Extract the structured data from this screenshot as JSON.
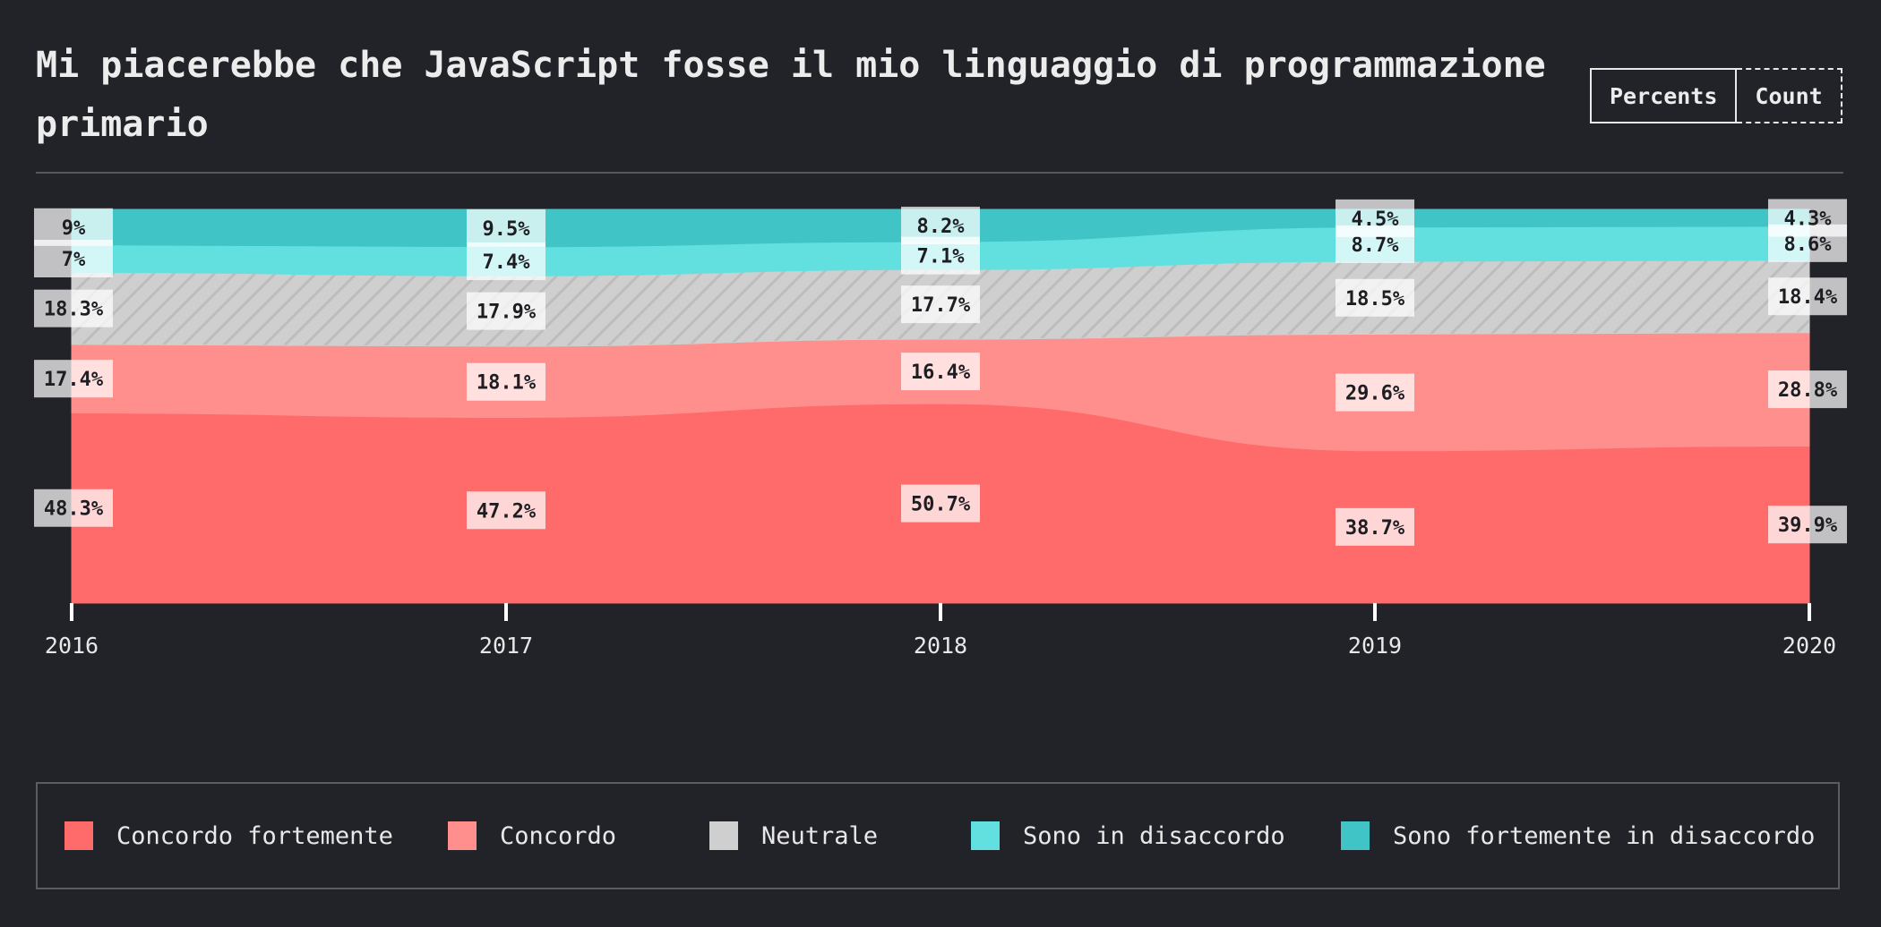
{
  "header": {
    "title": "Mi piacerebbe che JavaScript fosse il mio linguaggio di programmazione primario",
    "toggle": [
      "Percents",
      "Count"
    ]
  },
  "chart_data": {
    "type": "area",
    "stacked": true,
    "unit": "%",
    "x": [
      "2016",
      "2017",
      "2018",
      "2019",
      "2020"
    ],
    "series": [
      {
        "name": "Concordo fortemente",
        "color": "#ff6b6b",
        "values": [
          48.3,
          47.2,
          50.7,
          38.7,
          39.9
        ]
      },
      {
        "name": "Concordo",
        "color": "#ff8f8c",
        "values": [
          17.4,
          18.1,
          16.4,
          29.6,
          28.8
        ]
      },
      {
        "name": "Neutrale",
        "color": "#cfcfcf",
        "pattern": "diagonal-hatch",
        "values": [
          18.3,
          17.9,
          17.7,
          18.5,
          18.4
        ]
      },
      {
        "name": "Sono in disaccordo",
        "color": "#62e0e0",
        "values": [
          7,
          7.4,
          7.1,
          8.7,
          8.6
        ]
      },
      {
        "name": "Sono fortemente in disaccordo",
        "color": "#41c4c6",
        "values": [
          9,
          9.5,
          8.2,
          4.5,
          4.3
        ]
      }
    ],
    "ylim": [
      0,
      100
    ],
    "legend_position": "bottom"
  }
}
